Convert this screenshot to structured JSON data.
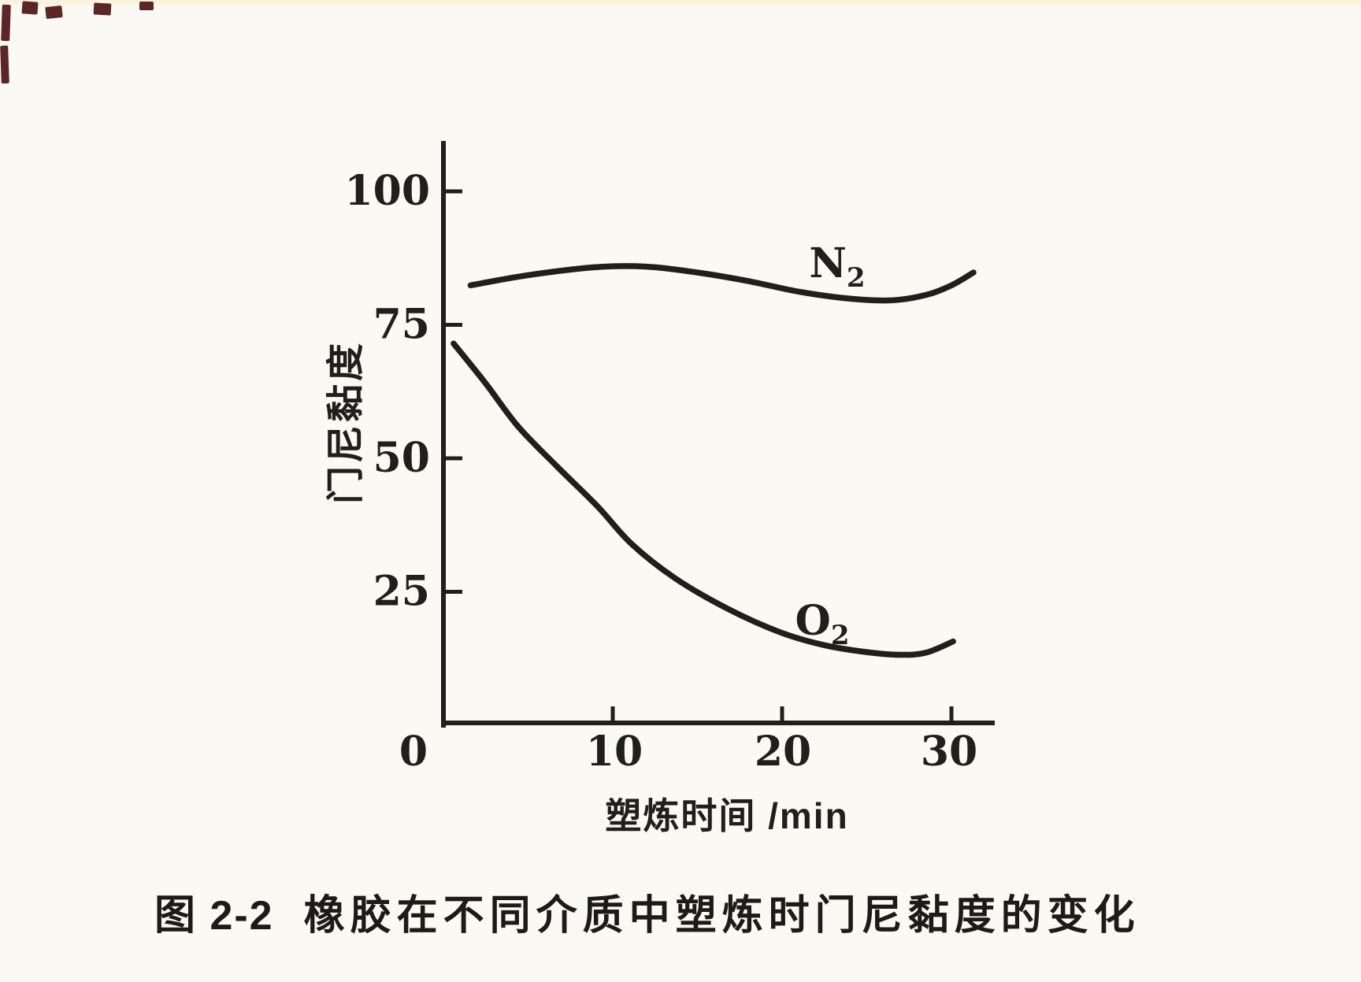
{
  "page": {
    "background": "#fbf9f3",
    "ink": "#221e1b"
  },
  "figure": {
    "caption_prefix": "图 2-2",
    "caption_text": "橡胶在不同介质中塑炼时门尼黏度的变化"
  },
  "chart_data": {
    "type": "line",
    "title": "",
    "xlabel": "塑炼时间 /min",
    "ylabel": "门尼黏度",
    "x_unit": "min",
    "xlim": [
      0,
      32.5
    ],
    "ylim": [
      0,
      110
    ],
    "x_ticks": [
      0,
      10,
      20,
      30
    ],
    "y_ticks": [
      25,
      50,
      75,
      100
    ],
    "grid": false,
    "legend_position": "inline-labels",
    "series": [
      {
        "name": "N₂",
        "label_base": "N",
        "label_sub": "2",
        "points": [
          [
            1.6,
            82.4
          ],
          [
            5,
            84.3
          ],
          [
            9,
            85.8
          ],
          [
            12,
            85.9
          ],
          [
            15,
            84.8
          ],
          [
            18,
            83.2
          ],
          [
            21,
            81.2
          ],
          [
            24,
            79.9
          ],
          [
            26.5,
            79.6
          ],
          [
            28.5,
            80.6
          ],
          [
            30,
            82.4
          ],
          [
            31.3,
            84.8
          ]
        ]
      },
      {
        "name": "O₂",
        "label_base": "O",
        "label_sub": "2",
        "points": [
          [
            0.6,
            71.5
          ],
          [
            2.5,
            64
          ],
          [
            4.4,
            56
          ],
          [
            6.7,
            48.5
          ],
          [
            9.1,
            41
          ],
          [
            11.1,
            34
          ],
          [
            13.7,
            27.5
          ],
          [
            16.8,
            21.8
          ],
          [
            19.9,
            17.4
          ],
          [
            22.5,
            15
          ],
          [
            25,
            13.7
          ],
          [
            27,
            13.2
          ],
          [
            28.5,
            13.6
          ],
          [
            30.1,
            15.7
          ]
        ]
      }
    ]
  }
}
